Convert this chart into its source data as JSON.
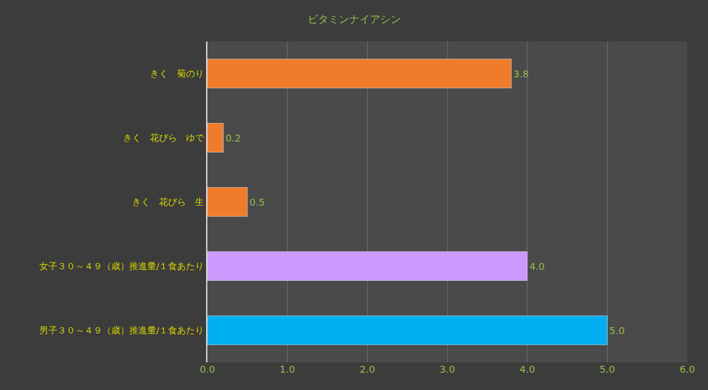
{
  "chart_data": {
    "type": "bar",
    "orientation": "horizontal",
    "title": "ビタミンナイアシン",
    "categories": [
      "きく　菊のり",
      "きく　花びら　ゆで",
      "きく　花びら　生",
      "女子３０～４９（歳）推進量/１食あたり",
      "男子３０～４９（歳）推進量/１食あたり"
    ],
    "values": [
      3.8,
      0.2,
      0.5,
      4.0,
      5.0
    ],
    "colors": [
      "#f07b2a",
      "#f07b2a",
      "#f07b2a",
      "#cc99ff",
      "#00b0f0"
    ],
    "value_labels": [
      "3.8",
      "0.2",
      "0.5",
      "4.0",
      "5.0"
    ],
    "xlim": [
      0,
      6
    ],
    "xticks": [
      {
        "value": 0,
        "label": "0.0"
      },
      {
        "value": 1,
        "label": "1.0"
      },
      {
        "value": 2,
        "label": "2.0"
      },
      {
        "value": 3,
        "label": "3.0"
      },
      {
        "value": 4,
        "label": "4.0"
      },
      {
        "value": 5,
        "label": "5.0"
      },
      {
        "value": 6,
        "label": "6.0"
      }
    ],
    "grid": "x",
    "legend": false
  }
}
